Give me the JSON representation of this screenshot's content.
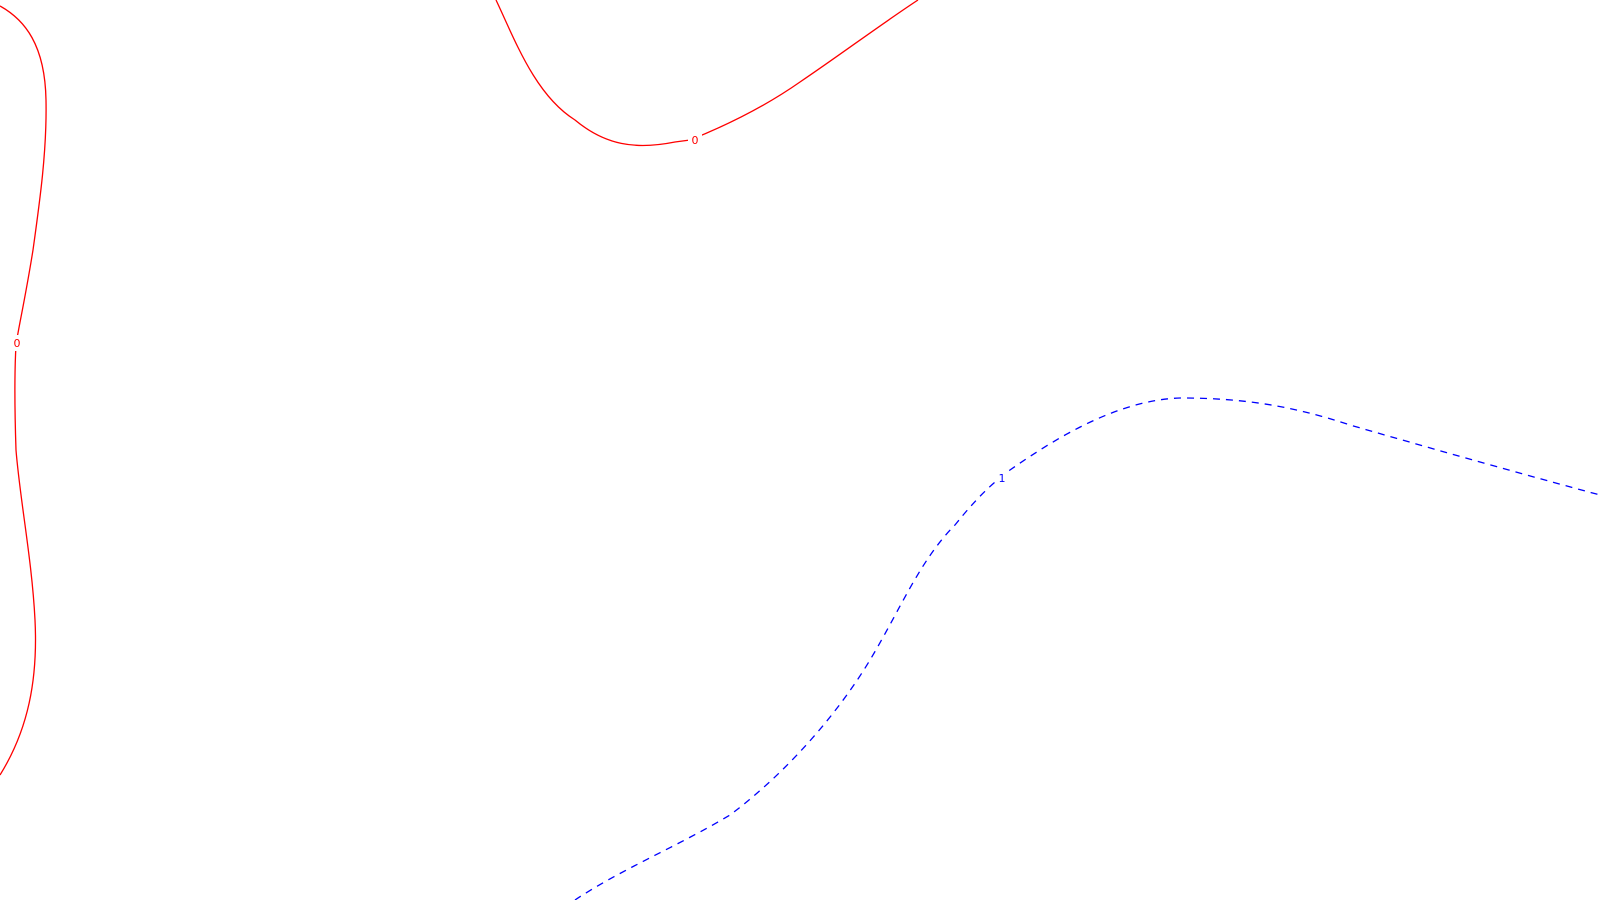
{
  "contours": [
    {
      "id": "contour-0-left",
      "level": "0",
      "color": "#ff0000",
      "style": "solid"
    },
    {
      "id": "contour-0-top",
      "level": "0",
      "color": "#ff0000",
      "style": "solid"
    },
    {
      "id": "contour-1",
      "level": "1",
      "color": "#0000ff",
      "style": "dashed"
    }
  ]
}
